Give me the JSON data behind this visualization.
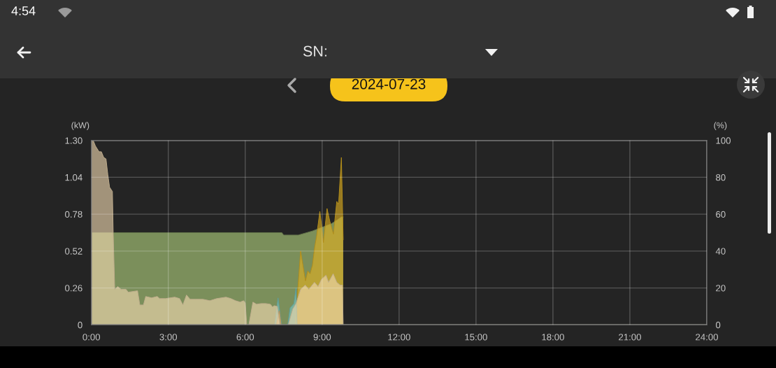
{
  "chart_data": {
    "type": "area",
    "title": "2024-07-23",
    "ylabel": "(kW)",
    "y2label": "(%)",
    "annotations": [
      "4:54",
      "SN:"
    ],
    "xlim": [
      0,
      24
    ],
    "xticks": [
      {
        "value": 0,
        "label": "0:00"
      },
      {
        "value": 3,
        "label": "3:00"
      },
      {
        "value": 6,
        "label": "6:00"
      },
      {
        "value": 9,
        "label": "9:00"
      },
      {
        "value": 12,
        "label": "12:00"
      },
      {
        "value": 15,
        "label": "15:00"
      },
      {
        "value": 18,
        "label": "18:00"
      },
      {
        "value": 21,
        "label": "21:00"
      },
      {
        "value": 24,
        "label": "24:00"
      }
    ],
    "ylim": [
      0,
      1.3
    ],
    "yticks": [
      0,
      0.26,
      0.52,
      0.78,
      1.04,
      {
        "value": 1.3,
        "label": "1.30"
      }
    ],
    "y2lim": [
      0,
      100
    ],
    "y2ticks": [
      0,
      20,
      40,
      60,
      80,
      100
    ],
    "grid": true,
    "series": [
      {
        "color": "#7b8f5b",
        "axis": "y2",
        "x": [
          0,
          7.43,
          7.5,
          8.07,
          8.62,
          8.98,
          9.34,
          9.6,
          9.75,
          9.82
        ],
        "values": [
          50,
          50,
          48.7,
          48.7,
          50.9,
          52.8,
          54.7,
          57,
          58.5,
          58.5
        ]
      },
      {
        "color": "#e0b020",
        "x": [
          7.95,
          8.05,
          8.16,
          8.26,
          8.35,
          8.44,
          8.53,
          8.62,
          8.71,
          8.78,
          8.91,
          8.98,
          9.05,
          9.19,
          9.3,
          9.44,
          9.57,
          9.64,
          9.75,
          9.82
        ],
        "values": [
          0,
          0.25,
          0.52,
          0.41,
          0.31,
          0.38,
          0.36,
          0.42,
          0.55,
          0.62,
          0.8,
          0.7,
          0.58,
          0.82,
          0.73,
          0.64,
          0.87,
          0.85,
          1.18,
          0.6
        ]
      },
      {
        "color": "#76c6c4",
        "x": [
          7.15,
          7.28,
          7.38,
          7.42,
          7.66,
          7.75,
          7.9,
          7.98,
          8.02
        ],
        "values": [
          0,
          0.19,
          0.05,
          0,
          0,
          0.12,
          0.15,
          0.26,
          0
        ]
      },
      {
        "color": "#f0b266",
        "x": [
          7.22,
          7.33,
          7.4
        ],
        "values": [
          0,
          0.1,
          0
        ]
      },
      {
        "color": "#f0d8b0",
        "x": [
          0,
          0.07,
          0.16,
          0.3,
          0.39,
          0.48,
          0.57,
          0.64,
          0.71,
          0.82,
          0.85,
          0.91,
          1.03,
          1.16,
          1.35,
          1.44,
          1.62,
          1.8,
          1.89,
          2.03,
          2.12,
          2.35,
          2.57,
          2.66,
          2.89,
          3.25,
          3.44,
          3.57,
          3.71,
          3.85,
          4.07,
          4.35,
          4.62,
          4.89,
          5.25,
          5.44,
          5.62,
          5.8,
          5.94,
          6.0,
          6.06,
          6.14,
          6.3,
          6.44,
          6.62,
          6.8,
          6.98,
          7.07,
          7.12,
          7.25,
          7.35,
          7.68,
          7.85,
          7.98,
          8.16,
          8.34,
          8.48,
          8.7,
          8.84,
          8.97,
          9.15,
          9.25,
          9.43,
          9.57,
          9.7,
          9.79,
          9.82,
          24
        ],
        "values": [
          1.3,
          1.3,
          1.26,
          1.22,
          1.22,
          1.18,
          1.17,
          1.06,
          0.97,
          0.94,
          0.65,
          0.25,
          0.27,
          0.25,
          0.25,
          0.23,
          0.235,
          0.24,
          0.14,
          0.14,
          0.2,
          0.19,
          0.2,
          0.185,
          0.185,
          0.195,
          0.185,
          0.14,
          0.21,
          0.18,
          0.18,
          0.18,
          0.17,
          0.185,
          0.195,
          0.185,
          0.17,
          0.16,
          0.17,
          0.155,
          0,
          0,
          0.16,
          0.145,
          0.15,
          0.15,
          0.145,
          0.125,
          0.135,
          0.13,
          0,
          0,
          0.11,
          0.15,
          0.25,
          0.28,
          0.25,
          0.3,
          0.27,
          0.32,
          0.35,
          0.3,
          0.36,
          0.3,
          0.28,
          0.28,
          0,
          0
        ]
      }
    ]
  }
}
